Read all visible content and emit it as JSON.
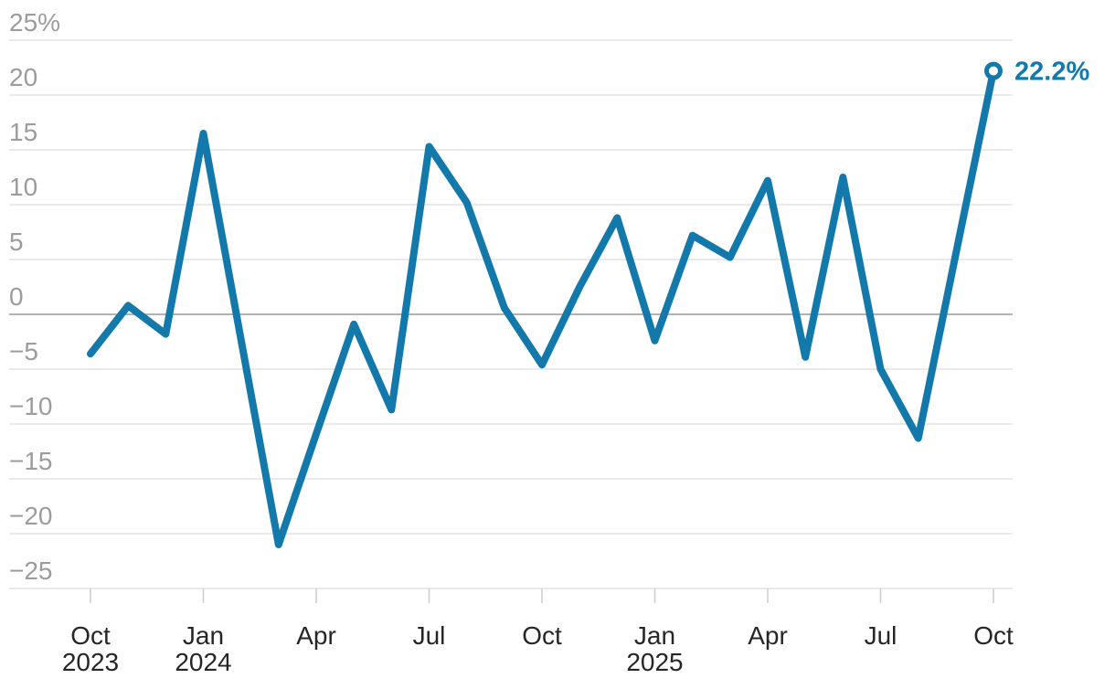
{
  "chart_data": {
    "type": "line",
    "title": "",
    "unit": "%",
    "categories": [
      "Oct 2023",
      "Nov 2023",
      "Dec 2023",
      "Jan 2024",
      "Feb 2024",
      "Mar 2024",
      "Apr 2024",
      "May 2024",
      "Jun 2024",
      "Jul 2024",
      "Aug 2024",
      "Sep 2024",
      "Oct 2024",
      "Nov 2024",
      "Dec 2024",
      "Jan 2025",
      "Feb 2025",
      "Mar 2025",
      "Apr 2025",
      "May 2025",
      "Jun 2025",
      "Jul 2025",
      "Aug 2025",
      "Sep 2025",
      "Oct 2025"
    ],
    "values": [
      -3.6,
      0.8,
      -1.8,
      16.5,
      -2.3,
      -21.0,
      -10.9,
      -0.9,
      -8.7,
      15.3,
      10.2,
      0.6,
      -4.6,
      2.5,
      8.8,
      -2.4,
      7.2,
      5.2,
      12.2,
      -3.9,
      12.5,
      -5.0,
      -11.3,
      5.5,
      22.2
    ],
    "end_point_label": "22.2%",
    "end_point_value": 22.2,
    "y_axis": {
      "range": [
        -25,
        25
      ],
      "ticks": [
        25,
        20,
        15,
        10,
        5,
        0,
        -5,
        -10,
        -15,
        -20,
        -25
      ],
      "labels": [
        "25%",
        "20",
        "15",
        "10",
        "5",
        "0",
        "−5",
        "−10",
        "−15",
        "−20",
        "−25"
      ]
    },
    "x_axis": {
      "ticks": [
        {
          "index": 0,
          "label": "Oct",
          "year": "2023"
        },
        {
          "index": 3,
          "label": "Jan",
          "year": "2024"
        },
        {
          "index": 6,
          "label": "Apr",
          "year": ""
        },
        {
          "index": 9,
          "label": "Jul",
          "year": ""
        },
        {
          "index": 12,
          "label": "Oct",
          "year": ""
        },
        {
          "index": 15,
          "label": "Jan",
          "year": "2025"
        },
        {
          "index": 18,
          "label": "Apr",
          "year": ""
        },
        {
          "index": 21,
          "label": "Jul",
          "year": ""
        },
        {
          "index": 24,
          "label": "Oct",
          "year": ""
        }
      ]
    },
    "grid": true,
    "legend": "none",
    "colors": {
      "line": "#1379ab",
      "end_label": "#1379ab",
      "marker_fill": "#ffffff",
      "grid": "#e4e4e4",
      "zero_line": "#b3b3b3",
      "axis_line": "#e4e4e4",
      "tick": "#cccccc",
      "y_label": "#9c9c9c",
      "x_label": "#262626",
      "background": "#ffffff"
    }
  }
}
